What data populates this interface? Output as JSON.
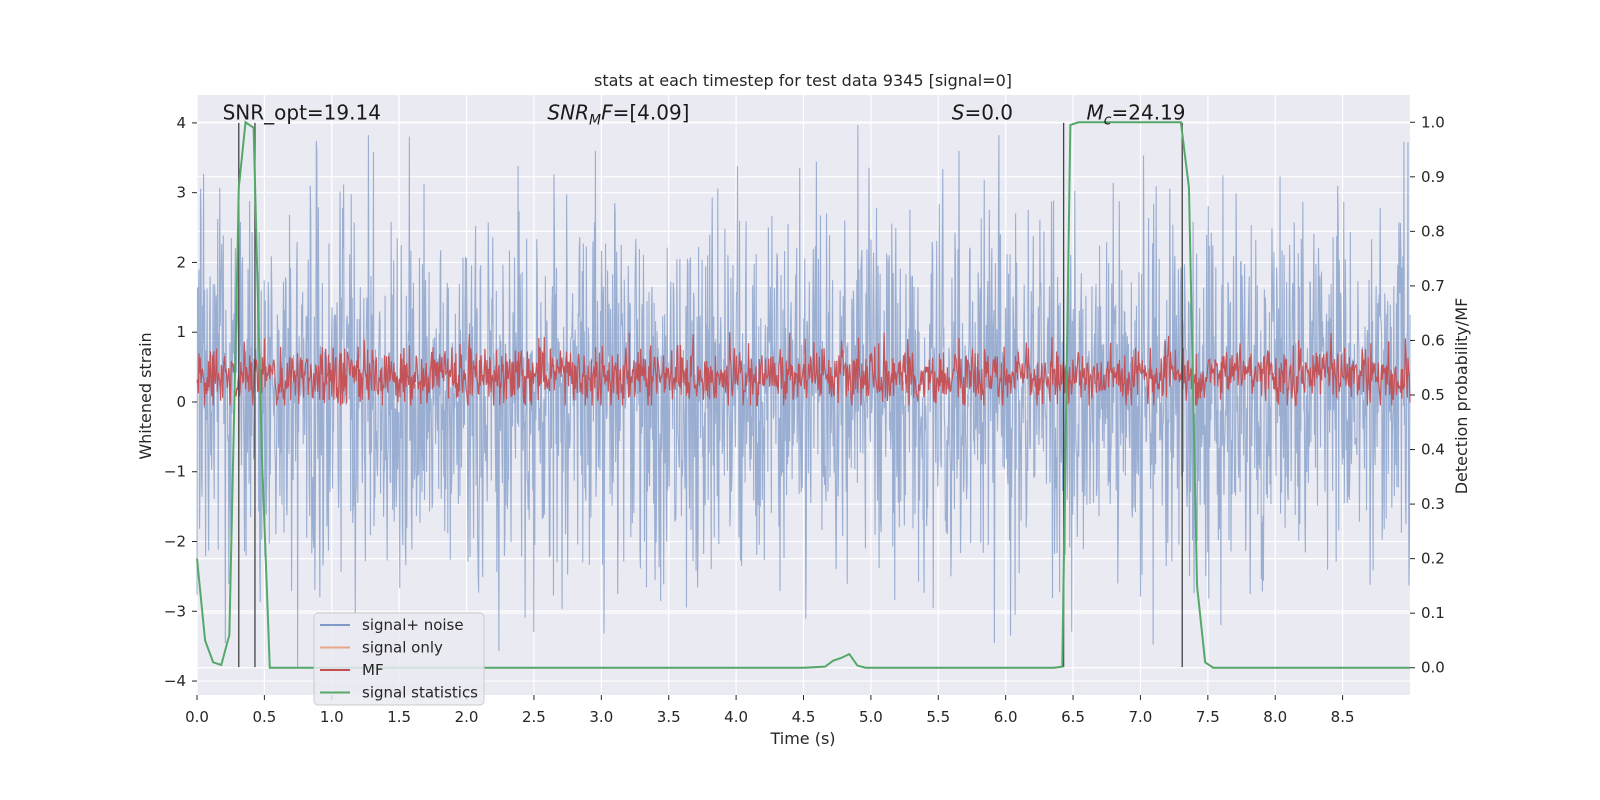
{
  "chart_data": {
    "type": "line",
    "title": "stats at each timestep for test data 9345 [signal=0]",
    "xlabel": "Time (s)",
    "ylabel": "Whitened strain",
    "y2label": "Detection probability/MF",
    "xlim": [
      0.0,
      9.0
    ],
    "ylim": [
      -4.2,
      4.4
    ],
    "y2lim": [
      -0.05,
      1.05
    ],
    "xticks": [
      0.0,
      0.5,
      1.0,
      1.5,
      2.0,
      2.5,
      3.0,
      3.5,
      4.0,
      4.5,
      5.0,
      5.5,
      6.0,
      6.5,
      7.0,
      7.5,
      8.0,
      8.5
    ],
    "xtick_labels": [
      "0.0",
      "0.5",
      "1.0",
      "1.5",
      "2.0",
      "2.5",
      "3.0",
      "3.5",
      "4.0",
      "4.5",
      "5.0",
      "5.5",
      "6.0",
      "6.5",
      "7.0",
      "7.5",
      "8.0",
      "8.5"
    ],
    "yticks": [
      -4,
      -3,
      -2,
      -1,
      0,
      1,
      2,
      3,
      4
    ],
    "ytick_labels": [
      "−4",
      "−3",
      "−2",
      "−1",
      "0",
      "1",
      "2",
      "3",
      "4"
    ],
    "y2ticks": [
      0.0,
      0.1,
      0.2,
      0.3,
      0.4,
      0.5,
      0.6,
      0.7,
      0.8,
      0.9,
      1.0
    ],
    "y2tick_labels": [
      "0.0",
      "0.1",
      "0.2",
      "0.3",
      "0.4",
      "0.5",
      "0.6",
      "0.7",
      "0.8",
      "0.9",
      "1.0"
    ],
    "grid": true,
    "legend_position": "lower-left",
    "annotations": [
      {
        "name": "snr-opt",
        "text": "SNR_opt=19.14",
        "x": 0.19,
        "y": 4.05
      },
      {
        "name": "snr-mf",
        "text": "SNR_MF=[4.09]",
        "x": 2.6,
        "y": 4.05
      },
      {
        "name": "s-value",
        "text": "S=0.0",
        "x": 5.6,
        "y": 4.05
      },
      {
        "name": "mc-value",
        "text": "M_c=24.19",
        "x": 6.6,
        "y": 4.05
      }
    ],
    "vertical_lines": [
      {
        "x": 0.31,
        "y_from": -3.8,
        "y_to": 4.0
      },
      {
        "x": 0.43,
        "y_from": -3.8,
        "y_to": 4.0
      },
      {
        "x": 6.43,
        "y_from": -3.8,
        "y_to": 4.0
      },
      {
        "x": 7.31,
        "y_from": -3.8,
        "y_to": 4.0
      }
    ],
    "series": [
      {
        "name": "signal+ noise",
        "color": "#7f9ac7",
        "axis": "left",
        "kind": "noise",
        "x_range": [
          0.0,
          9.0
        ],
        "points": 2400,
        "band_core": [
          -1.45,
          1.65
        ],
        "extremes": [
          -3.8,
          4.0
        ]
      },
      {
        "name": "signal only",
        "color": "#e8a58a",
        "axis": "left",
        "values": []
      },
      {
        "name": "MF",
        "color": "#c44e52",
        "axis": "left",
        "kind": "noise",
        "x_range": [
          0.0,
          9.0
        ],
        "points": 1800,
        "band_core": [
          0.05,
          0.7
        ],
        "extremes": [
          -0.05,
          1.0
        ]
      },
      {
        "name": "signal statistics",
        "color": "#55a868",
        "axis": "right",
        "x": [
          0.0,
          0.06,
          0.12,
          0.18,
          0.24,
          0.3,
          0.31,
          0.36,
          0.42,
          0.48,
          0.54,
          0.6,
          1.0,
          2.0,
          3.0,
          4.0,
          4.5,
          4.66,
          4.72,
          4.78,
          4.84,
          4.9,
          4.96,
          5.5,
          6.0,
          6.36,
          6.42,
          6.48,
          6.54,
          6.6,
          7.0,
          7.3,
          7.36,
          7.42,
          7.48,
          7.54,
          8.0,
          9.0
        ],
        "y": [
          0.2,
          0.05,
          0.01,
          0.005,
          0.06,
          0.75,
          0.88,
          1.0,
          0.99,
          0.4,
          0.0,
          0.0,
          0.0,
          0.0,
          0.0,
          0.0,
          0.0,
          0.002,
          0.013,
          0.018,
          0.025,
          0.004,
          0.0,
          0.0,
          0.0,
          0.0,
          0.002,
          0.995,
          1.0,
          1.0,
          1.0,
          1.0,
          0.88,
          0.15,
          0.01,
          0.0,
          0.0,
          0.0
        ]
      }
    ]
  }
}
